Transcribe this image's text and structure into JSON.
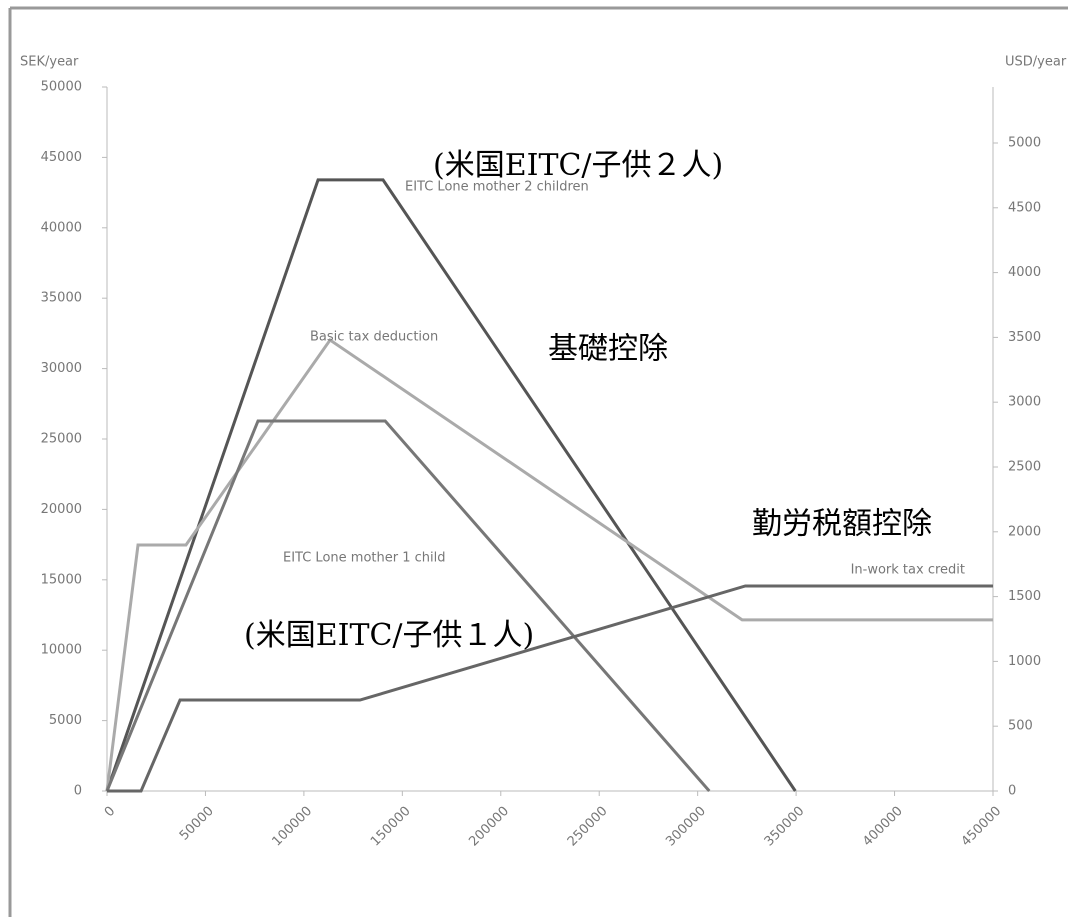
{
  "chart_data": {
    "type": "line",
    "ylabel": "SEK/year",
    "y2label": "USD/year",
    "xlim": [
      0,
      450000
    ],
    "xticks": [
      0,
      50000,
      100000,
      150000,
      200000,
      250000,
      300000,
      350000,
      400000,
      450000
    ],
    "ylim": [
      0,
      50000
    ],
    "yticks": [
      0,
      5000,
      10000,
      15000,
      20000,
      25000,
      30000,
      35000,
      40000,
      45000,
      50000
    ],
    "y2lim": [
      0,
      5432
    ],
    "y2ticks": [
      0,
      500,
      1000,
      1500,
      2000,
      2500,
      3000,
      3500,
      4000,
      4500,
      5000
    ],
    "grid": false,
    "series": [
      {
        "name": "EITC Lone mother 2 children",
        "color": "#555555",
        "x": [
          0,
          107200,
          140200,
          349600
        ],
        "values": [
          0,
          43400,
          43400,
          0
        ]
      },
      {
        "name": "Basic tax deduction",
        "color": "#aaaaaa",
        "x": [
          0,
          15750,
          40100,
          113300,
          322600,
          450000
        ],
        "values": [
          0,
          17470,
          17470,
          32030,
          12150,
          12150
        ]
      },
      {
        "name": "EITC Lone mother 1 child",
        "color": "#777777",
        "x": [
          0,
          76700,
          141300,
          305900
        ],
        "values": [
          0,
          26280,
          26280,
          0
        ]
      },
      {
        "name": "In-work tax credit",
        "color": "#666666",
        "x": [
          0,
          17300,
          37100,
          128500,
          324200,
          450000
        ],
        "values": [
          0,
          0,
          6460,
          6460,
          14560,
          14560
        ]
      }
    ],
    "annotations": [
      "(米国EITC/子供２人)",
      "基礎控除",
      "勤労税額控除",
      "(米国EITC/子供１人)"
    ]
  }
}
